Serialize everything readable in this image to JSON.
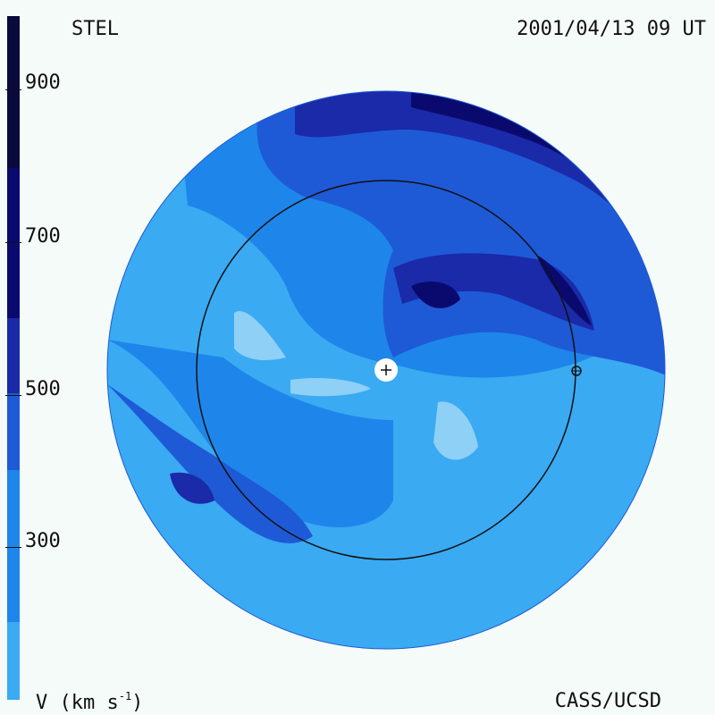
{
  "header": {
    "source": "STEL",
    "timestamp": "2001/04/13 09 UT"
  },
  "footer": {
    "unit_prefix": "V (km s",
    "unit_exp": "-1",
    "unit_suffix": ")",
    "credit": "CASS/UCSD"
  },
  "colorbar": {
    "ticks": [
      "900",
      "700",
      "500",
      "300"
    ],
    "colors": [
      "#0a0a3c",
      "#0a0a6e",
      "#1a2aa8",
      "#1e5ad6",
      "#1e86ea",
      "#3aaaf2",
      "#8fd0f6"
    ]
  },
  "map": {
    "center_marker": "+",
    "earth_marker": "earth-orbit-marker"
  }
}
